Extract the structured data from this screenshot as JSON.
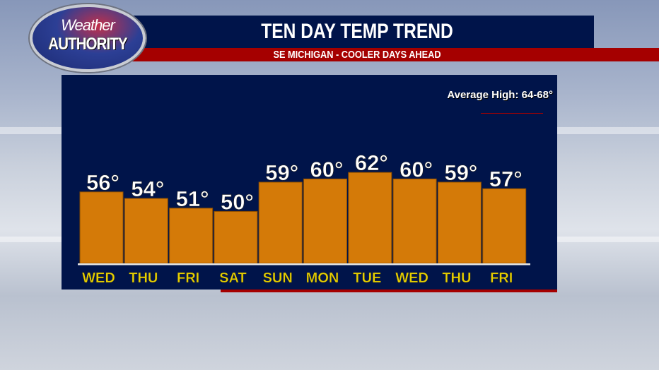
{
  "logo": {
    "line1": "Weather",
    "line2": "AUTHORITY"
  },
  "header": {
    "title": "TEN DAY TEMP TREND",
    "subtitle": "SE MICHIGAN - COOLER DAYS AHEAD"
  },
  "colors": {
    "bar": "#d47a08",
    "panel": "#00144a",
    "accent_red": "#a50000",
    "day_label": "#e6cf00",
    "value_label": "#ffffff"
  },
  "chart_data": {
    "type": "bar",
    "title": "TEN DAY TEMP TREND",
    "subtitle": "SE MICHIGAN - COOLER DAYS AHEAD",
    "annotation": "Average High: 64-68°",
    "categories": [
      "WED",
      "THU",
      "FRI",
      "SAT",
      "SUN",
      "MON",
      "TUE",
      "WED",
      "THU",
      "FRI"
    ],
    "values": [
      56,
      54,
      51,
      50,
      59,
      60,
      62,
      60,
      59,
      57
    ],
    "value_labels": [
      "56°",
      "54°",
      "51°",
      "50°",
      "59°",
      "60°",
      "62°",
      "60°",
      "59°",
      "57°"
    ],
    "unit": "°F",
    "grid": false,
    "legend": "none"
  }
}
